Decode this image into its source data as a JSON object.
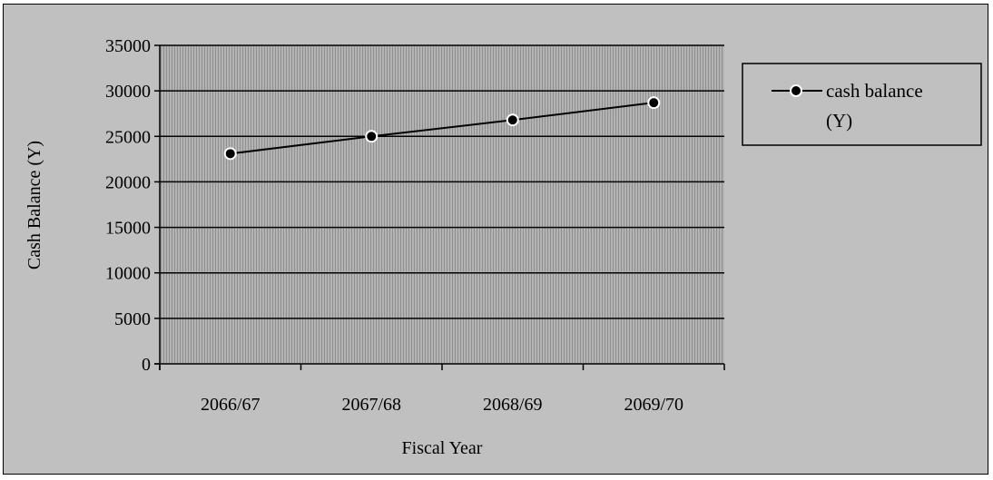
{
  "chart_data": {
    "type": "line",
    "title": "",
    "xlabel": "Fiscal Year",
    "ylabel": "Cash Balance (Y)",
    "categories": [
      "2066/67",
      "2067/68",
      "2068/69",
      "2069/70"
    ],
    "series": [
      {
        "name": "cash balance (Y)",
        "legend_lines": [
          "cash balance",
          "(Y)"
        ],
        "values": [
          23100,
          25000,
          26800,
          28700
        ]
      }
    ],
    "ylim": [
      0,
      35000
    ],
    "yticks": [
      "0",
      "5000",
      "10000",
      "15000",
      "20000",
      "25000",
      "30000",
      "35000"
    ],
    "grid": true,
    "legend": "right",
    "colors": {
      "plot_area": "#a6a6a6",
      "chart_area": "#c0c0c0",
      "line": "#000000",
      "marker": "#000000"
    }
  }
}
